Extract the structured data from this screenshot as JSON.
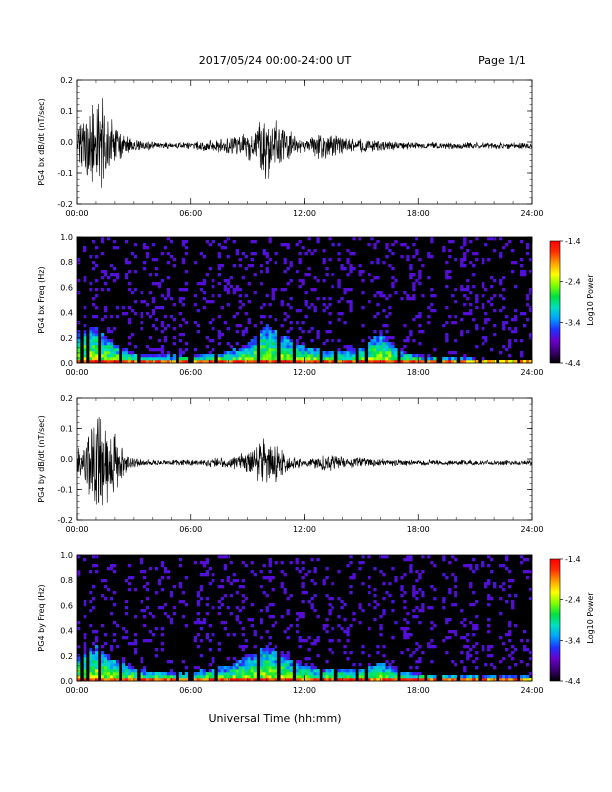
{
  "header": {
    "title": "2017/05/24  00:00-24:00 UT",
    "page": "Page 1/1"
  },
  "footer": {
    "xlabel": "Universal Time (hh:mm)"
  },
  "colors": {
    "trace": "#000000",
    "spectrogram_background": "#000000",
    "colorbar_stops": [
      "#000000",
      "#3a0070",
      "#6a00c8",
      "#2030ff",
      "#00a0ff",
      "#00e0c0",
      "#00e040",
      "#80ff00",
      "#ffff00",
      "#ffa000",
      "#ff3000",
      "#ff0000"
    ]
  },
  "chart_data": [
    {
      "type": "line",
      "ylabel": "PG4 bx dB/dt (nT/sec)",
      "xticks": [
        "00:00",
        "06:00",
        "12:00",
        "18:00",
        "24:00"
      ],
      "yticks": [
        "-0.2",
        "-0.1",
        "0.0",
        "0.1",
        "0.2"
      ],
      "xlim": [
        0,
        24
      ],
      "ylim": [
        -0.2,
        0.2
      ],
      "x_unit": "hours UT",
      "envelope": {
        "x": [
          0,
          0.5,
          1.0,
          1.5,
          2.0,
          2.5,
          3,
          4,
          5,
          6,
          7,
          8,
          9,
          9.5,
          10,
          10.5,
          11,
          11.5,
          12,
          12.5,
          13,
          13.5,
          14,
          14.5,
          15,
          16,
          17,
          18,
          19,
          20,
          21,
          22,
          23,
          24
        ],
        "y": [
          0.06,
          0.12,
          0.17,
          0.15,
          0.08,
          0.04,
          0.025,
          0.015,
          0.012,
          0.012,
          0.02,
          0.03,
          0.05,
          0.08,
          0.13,
          0.1,
          0.06,
          0.04,
          0.025,
          0.04,
          0.05,
          0.04,
          0.03,
          0.03,
          0.025,
          0.02,
          0.015,
          0.012,
          0.012,
          0.012,
          0.012,
          0.012,
          0.012,
          0.012
        ]
      }
    },
    {
      "type": "heatmap",
      "ylabel": "PG4 bx Freq (Hz)",
      "xticks": [
        "00:00",
        "06:00",
        "12:00",
        "18:00",
        "24:00"
      ],
      "yticks": [
        "0.0",
        "0.2",
        "0.4",
        "0.6",
        "0.8",
        "1.0"
      ],
      "xlim": [
        0,
        24
      ],
      "ylim": [
        0,
        1.0
      ],
      "colorbar": {
        "label": "Log10 Power",
        "ticks": [
          "-1.4",
          "-2.4",
          "-3.4",
          "-4.4"
        ],
        "range": [
          -4.4,
          -1.4
        ]
      },
      "vertical_streaks_hours": [
        0.3,
        0.6,
        1.2,
        2.3,
        3.3,
        5.3,
        6.0,
        7.3,
        9.6,
        10.6,
        11.5,
        12.9,
        13.6,
        14.8,
        15.3,
        17.0,
        18.4,
        19.1,
        20.1,
        21.3,
        22.2,
        23.3
      ],
      "enhancement": {
        "x": [
          0,
          1,
          2,
          3,
          4,
          6,
          8,
          9,
          10,
          11,
          12,
          13,
          14,
          15,
          16,
          17,
          18,
          20,
          22,
          24
        ],
        "peak_freq_hz": [
          0.25,
          0.3,
          0.15,
          0.08,
          0.06,
          0.06,
          0.09,
          0.15,
          0.3,
          0.22,
          0.13,
          0.1,
          0.1,
          0.12,
          0.25,
          0.1,
          0.06,
          0.04,
          0.03,
          0.03
        ]
      }
    },
    {
      "type": "line",
      "ylabel": "PG4 by dB/dt (nT/sec)",
      "xticks": [
        "00:00",
        "06:00",
        "12:00",
        "18:00",
        "24:00"
      ],
      "yticks": [
        "-0.2",
        "-0.1",
        "0.0",
        "0.1",
        "0.2"
      ],
      "xlim": [
        0,
        24
      ],
      "ylim": [
        -0.2,
        0.2
      ],
      "x_unit": "hours UT",
      "envelope": {
        "x": [
          0,
          0.5,
          1.0,
          1.5,
          2.0,
          2.5,
          3,
          4,
          5,
          6,
          7,
          8,
          9,
          9.5,
          10,
          10.5,
          11,
          11.5,
          12,
          12.5,
          13,
          13.5,
          14,
          14.5,
          15,
          16,
          17,
          18,
          19,
          20,
          21,
          22,
          23,
          24
        ],
        "y": [
          0.04,
          0.1,
          0.2,
          0.17,
          0.12,
          0.04,
          0.02,
          0.01,
          0.01,
          0.012,
          0.015,
          0.02,
          0.04,
          0.07,
          0.1,
          0.07,
          0.04,
          0.025,
          0.015,
          0.02,
          0.03,
          0.03,
          0.02,
          0.02,
          0.02,
          0.015,
          0.012,
          0.01,
          0.01,
          0.01,
          0.01,
          0.01,
          0.01,
          0.01
        ]
      }
    },
    {
      "type": "heatmap",
      "ylabel": "PG4 by Freq (Hz)",
      "xticks": [
        "00:00",
        "06:00",
        "12:00",
        "18:00",
        "24:00"
      ],
      "yticks": [
        "0.0",
        "0.2",
        "0.4",
        "0.6",
        "0.8",
        "1.0"
      ],
      "xlim": [
        0,
        24
      ],
      "ylim": [
        0,
        1.0
      ],
      "colorbar": {
        "label": "Log10 Power",
        "ticks": [
          "-1.4",
          "-2.4",
          "-3.4",
          "-4.4"
        ],
        "range": [
          -4.4,
          -1.4
        ]
      },
      "vertical_streaks_hours": [
        0.3,
        0.6,
        1.2,
        2.3,
        3.3,
        5.3,
        6.0,
        7.3,
        9.6,
        10.6,
        11.5,
        12.9,
        13.6,
        14.8,
        15.3,
        17.0,
        18.4,
        19.1,
        20.1,
        21.3,
        22.2,
        23.3
      ],
      "enhancement": {
        "x": [
          0,
          1,
          2,
          3,
          4,
          6,
          8,
          9,
          10,
          11,
          12,
          13,
          14,
          15,
          16,
          17,
          18,
          20,
          22,
          24
        ],
        "peak_freq_hz": [
          0.2,
          0.28,
          0.18,
          0.1,
          0.08,
          0.07,
          0.12,
          0.2,
          0.28,
          0.2,
          0.12,
          0.1,
          0.1,
          0.1,
          0.15,
          0.08,
          0.06,
          0.05,
          0.04,
          0.04
        ]
      }
    }
  ]
}
